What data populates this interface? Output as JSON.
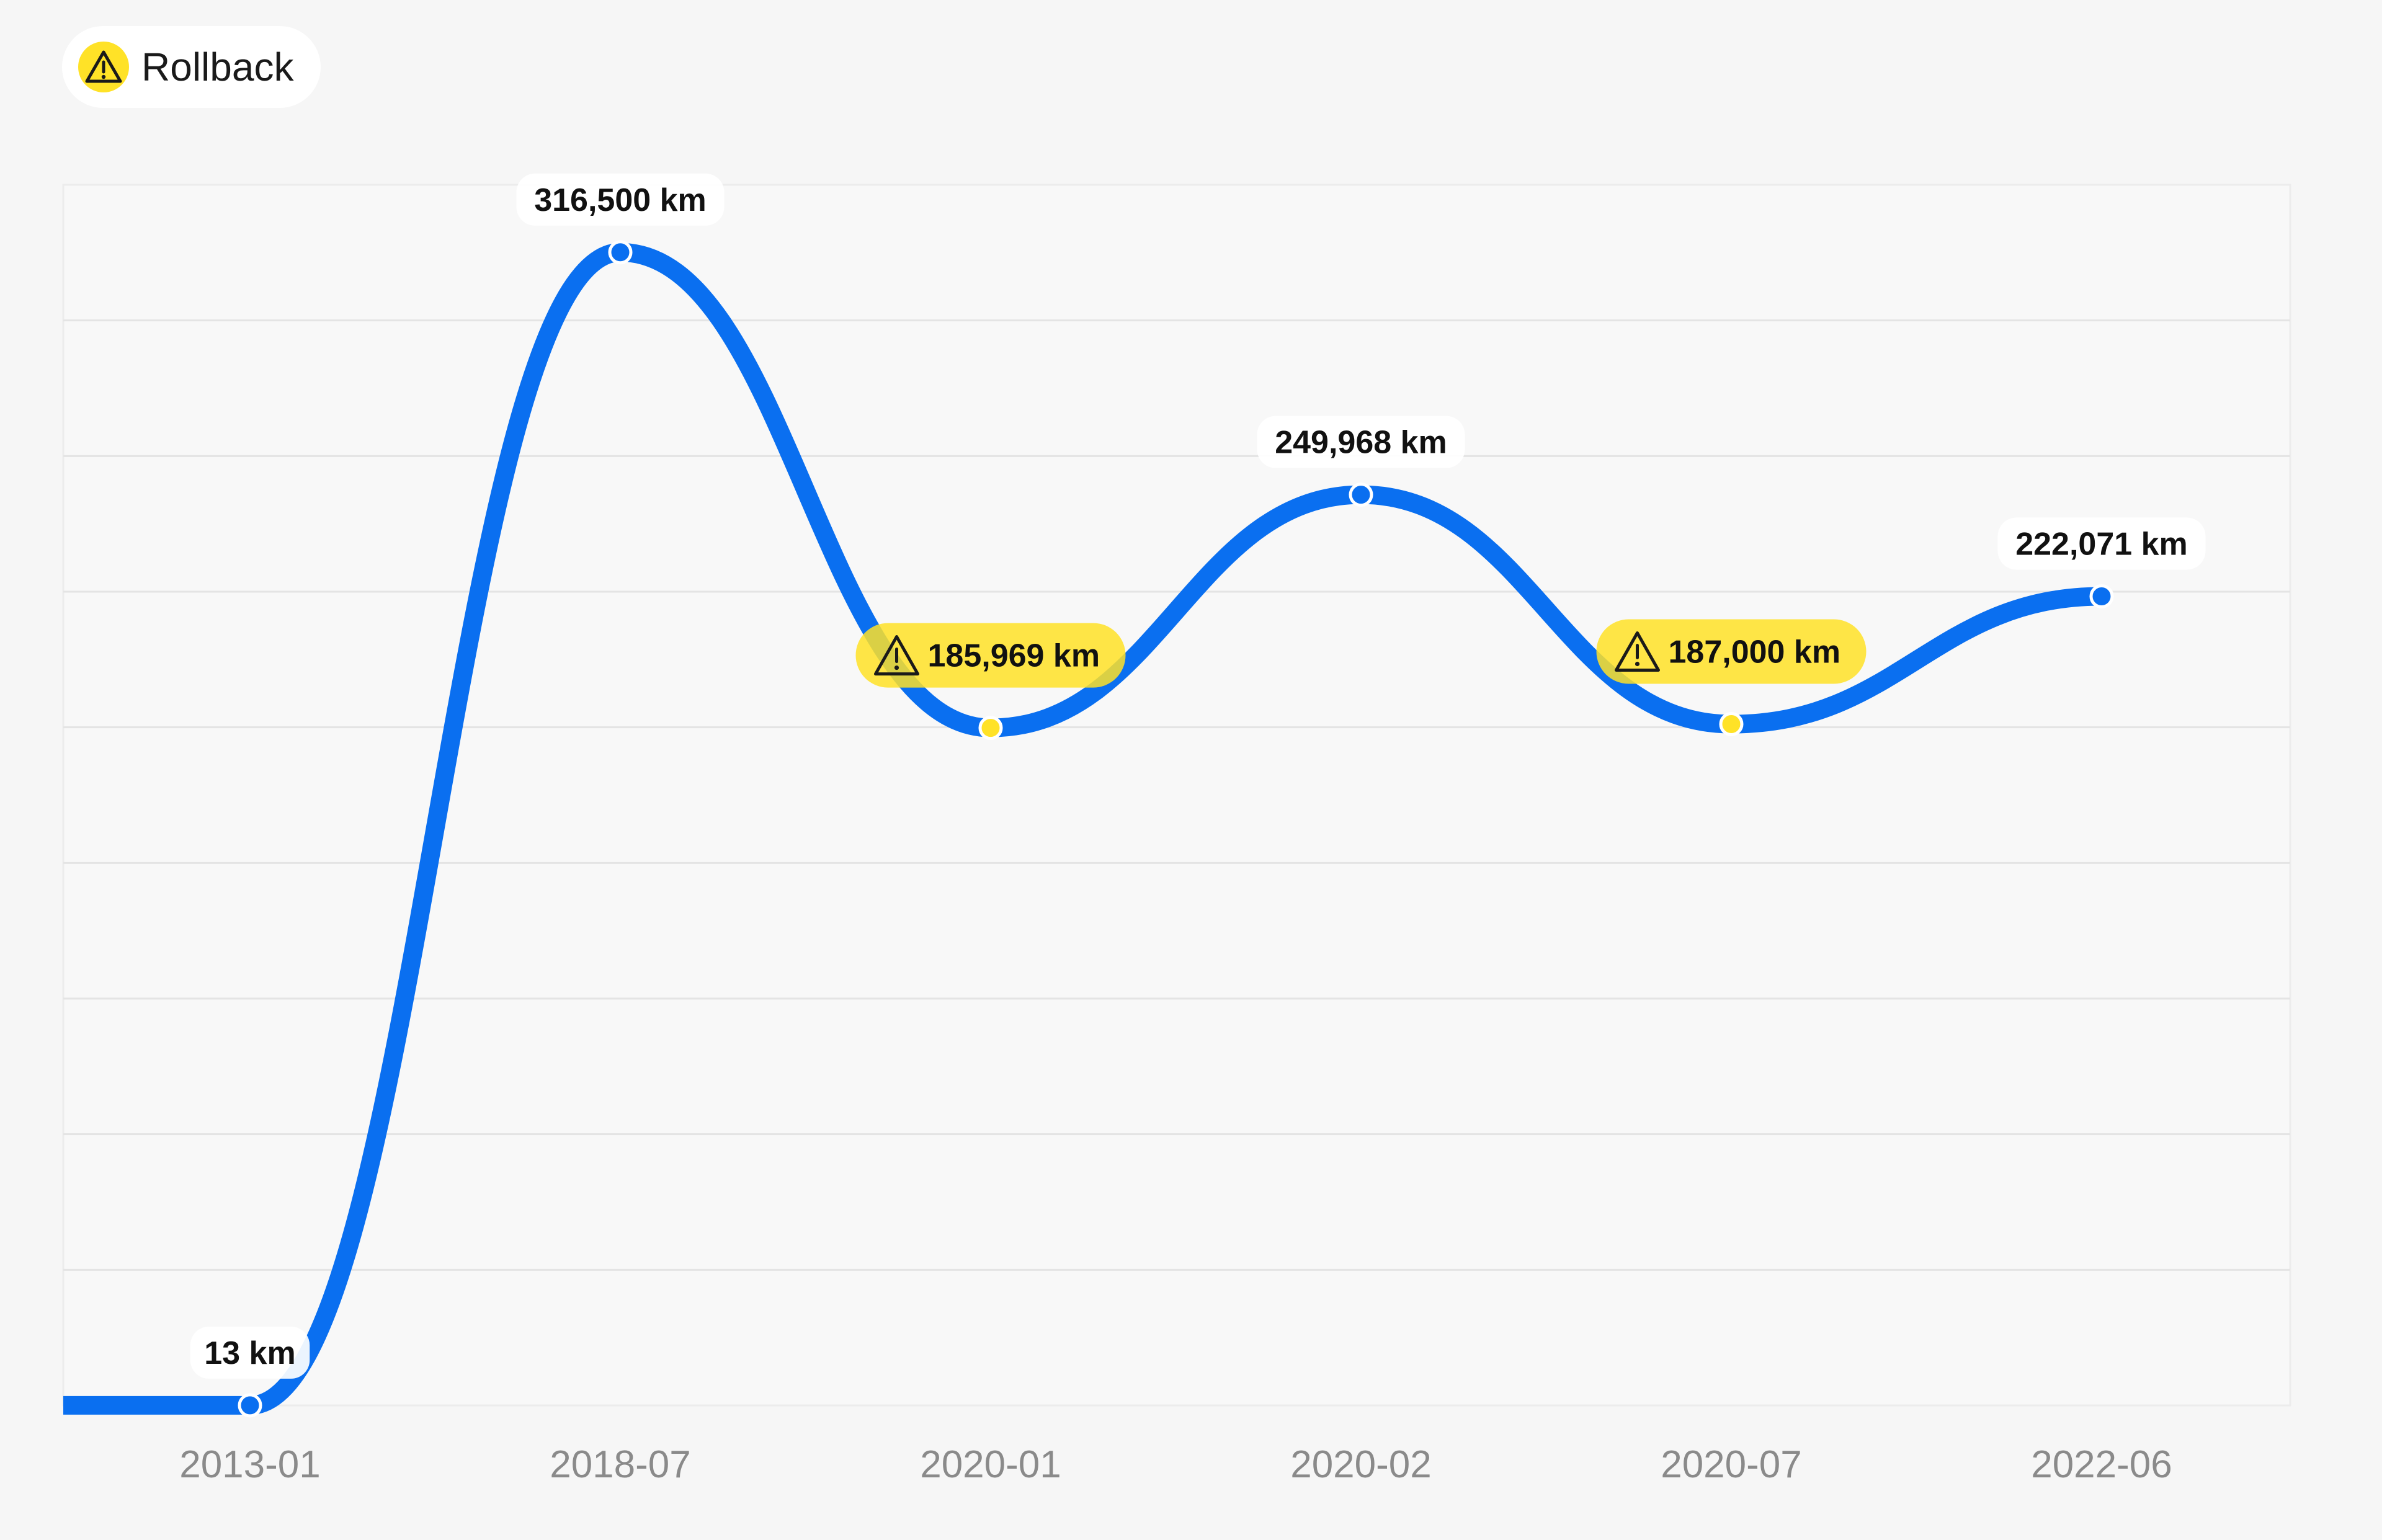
{
  "legend": {
    "label": "Rollback",
    "icon": "warning-triangle-icon",
    "color": "#ffe227"
  },
  "chart_data": {
    "type": "line",
    "categories": [
      "2013-01",
      "2018-07",
      "2020-01",
      "2020-02",
      "2020-07",
      "2022-06"
    ],
    "series": [
      {
        "values": [
          13,
          316500,
          185969,
          249968,
          187000,
          222071
        ],
        "data_labels": [
          "13 km",
          "316,500 km",
          "185,969 km",
          "249,968 km",
          "187,000 km",
          "222,071 km"
        ],
        "rollback": [
          false,
          false,
          true,
          false,
          true,
          false
        ],
        "color": "#0a6ff0"
      }
    ],
    "unit": "km",
    "ylim": [
      0,
      360000
    ],
    "grid": true,
    "legend_position": "top-left",
    "colors": {
      "line": "#0a6ff0",
      "rollback": "#ffe227",
      "gridline": "#e4e4e4",
      "plot_background": "#f8f8f8"
    }
  }
}
